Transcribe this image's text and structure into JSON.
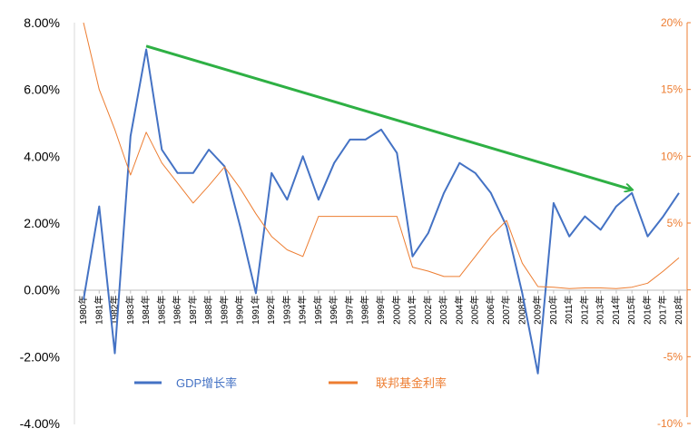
{
  "chart_data": {
    "type": "line",
    "title": "",
    "x": [
      "1980年",
      "1981年",
      "1982年",
      "1983年",
      "1984年",
      "1985年",
      "1986年",
      "1987年",
      "1988年",
      "1989年",
      "1990年",
      "1991年",
      "1992年",
      "1993年",
      "1994年",
      "1995年",
      "1996年",
      "1997年",
      "1998年",
      "1999年",
      "2000年",
      "2001年",
      "2002年",
      "2003年",
      "2004年",
      "2005年",
      "2006年",
      "2007年",
      "2008年",
      "2009年",
      "2010年",
      "2011年",
      "2012年",
      "2013年",
      "2014年",
      "2015年",
      "2016年",
      "2017年",
      "2018年"
    ],
    "left_axis": {
      "ylim": [
        -4,
        8
      ],
      "ticks": [
        -4,
        -2,
        0,
        2,
        4,
        6,
        8
      ],
      "tick_labels": [
        "-4.00%",
        "-2.00%",
        "0.00%",
        "2.00%",
        "4.00%",
        "6.00%",
        "8.00%"
      ]
    },
    "right_axis": {
      "ylim": [
        -10,
        20
      ],
      "ticks": [
        -10,
        -5,
        0,
        5,
        10,
        15,
        20
      ],
      "tick_labels": [
        "-10%",
        "-5%",
        "",
        "5%",
        "10%",
        "15%",
        "20%"
      ]
    },
    "series": [
      {
        "name": "GDP增长率",
        "axis": "left",
        "color": "#4472C4",
        "values": [
          -0.3,
          2.5,
          -1.9,
          4.6,
          7.2,
          4.2,
          3.5,
          3.5,
          4.2,
          3.7,
          1.9,
          -0.1,
          3.5,
          2.7,
          4.0,
          2.7,
          3.8,
          4.5,
          4.5,
          4.8,
          4.1,
          1.0,
          1.7,
          2.9,
          3.8,
          3.5,
          2.9,
          1.9,
          -0.1,
          -2.5,
          2.6,
          1.6,
          2.2,
          1.8,
          2.5,
          2.9,
          1.6,
          2.2,
          2.9
        ]
      },
      {
        "name": "联邦基金利率",
        "axis": "right",
        "color": "#ED7D31",
        "values": [
          20.0,
          15.0,
          12.0,
          8.6,
          11.8,
          9.5,
          8.0,
          6.5,
          7.8,
          9.2,
          7.6,
          5.7,
          4.0,
          3.0,
          2.5,
          5.5,
          5.5,
          5.5,
          5.5,
          5.5,
          5.5,
          1.7,
          1.4,
          1.0,
          1.0,
          2.5,
          4.0,
          5.2,
          2.0,
          0.25,
          0.2,
          0.1,
          0.15,
          0.15,
          0.1,
          0.2,
          0.5,
          1.4,
          2.4
        ]
      }
    ],
    "legend": {
      "placement": "bottom-center"
    },
    "annotation": {
      "type": "arrow",
      "color": "#2EB044",
      "from": {
        "x": "1984年",
        "y": 7.3
      },
      "to": {
        "x": "2015年",
        "y": 3.0
      }
    },
    "grid": false
  }
}
